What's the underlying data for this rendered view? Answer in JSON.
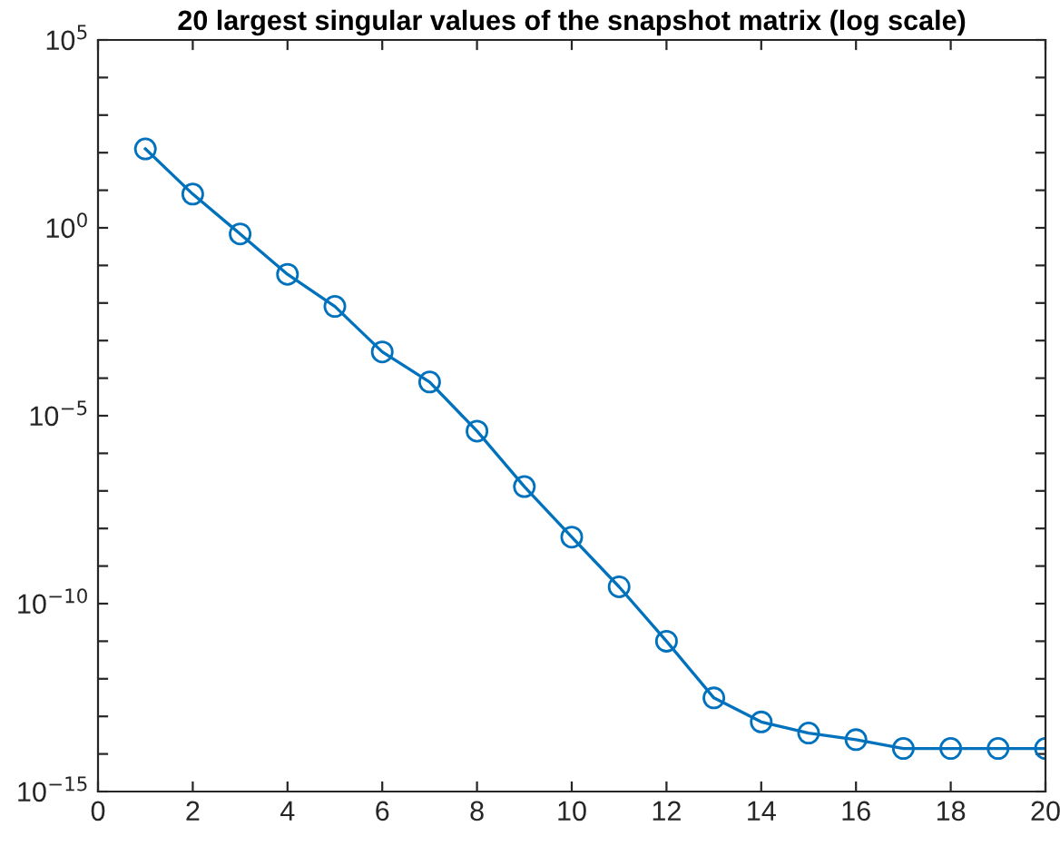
{
  "chart_data": {
    "type": "line",
    "title": "20 largest singular values of the snapshot matrix (log scale)",
    "x": [
      1,
      2,
      3,
      4,
      5,
      6,
      7,
      8,
      9,
      10,
      11,
      12,
      13,
      14,
      15,
      16,
      17,
      18,
      19,
      20
    ],
    "series": [
      {
        "color": "#0072bd",
        "values": [
          126,
          7.9,
          0.69,
          0.058,
          0.0081,
          0.0005,
          7.9e-05,
          3.9e-06,
          1.3e-07,
          5.9e-09,
          2.8e-10,
          1e-11,
          3.1e-13,
          7.1e-14,
          3.6e-14,
          2.4e-14,
          1.4e-14,
          1.4e-14,
          1.4e-14,
          1.4e-14
        ]
      }
    ],
    "log": "y",
    "marker": "circle",
    "line_style": "solid",
    "grid": false,
    "legend": false,
    "xlim": [
      0,
      20
    ],
    "xticks": [
      0,
      2,
      4,
      6,
      8,
      10,
      12,
      14,
      16,
      18,
      20
    ],
    "ylim": [
      1e-15,
      100000.0
    ],
    "yticks": [
      {
        "value": 1e-15,
        "label": "10$^{−15}$"
      },
      {
        "value": 1e-14,
        "label": null
      },
      {
        "value": 1e-13,
        "label": null
      },
      {
        "value": 1e-12,
        "label": null
      },
      {
        "value": 1e-11,
        "label": null
      },
      {
        "value": 1e-10,
        "label": "10$^{−10}$"
      },
      {
        "value": 1e-09,
        "label": null
      },
      {
        "value": 1e-08,
        "label": null
      },
      {
        "value": 1e-07,
        "label": null
      },
      {
        "value": 1e-06,
        "label": null
      },
      {
        "value": 1e-05,
        "label": "10$^{−5}$"
      },
      {
        "value": 0.0001,
        "label": null
      },
      {
        "value": 0.001,
        "label": null
      },
      {
        "value": 0.01,
        "label": null
      },
      {
        "value": 0.1,
        "label": null
      },
      {
        "value": 1,
        "label": "10$^{0}$"
      },
      {
        "value": 10,
        "label": null
      },
      {
        "value": 100,
        "label": null
      },
      {
        "value": 1000,
        "label": null
      },
      {
        "value": 10000,
        "label": null
      },
      {
        "value": 100000.0,
        "label": "10$^{5}$"
      }
    ]
  }
}
